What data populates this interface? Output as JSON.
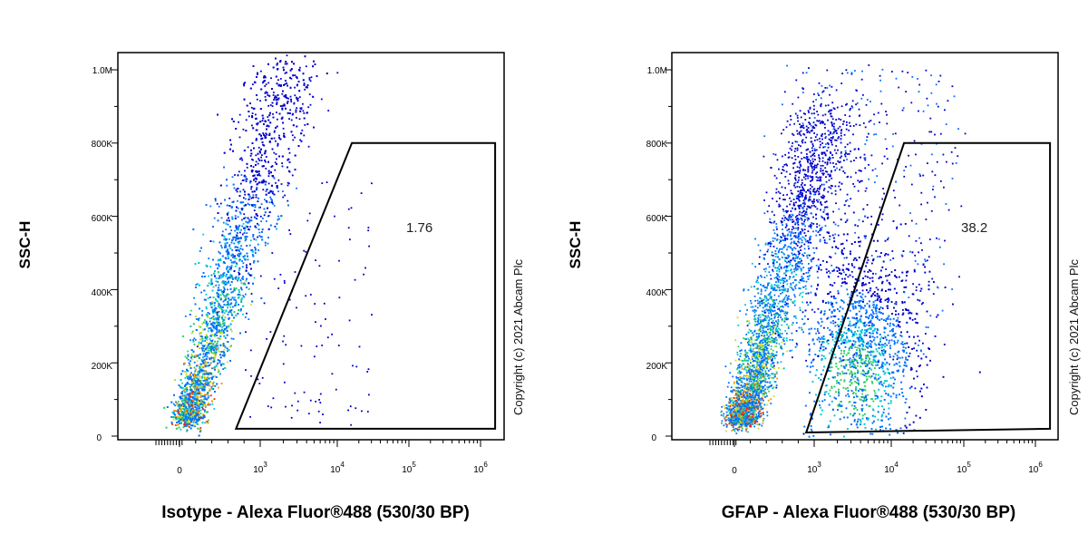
{
  "copyright": "Copyright (c) 2021 Abcam Plc",
  "colors": {
    "density": [
      "#0000cc",
      "#0070ff",
      "#00c8d0",
      "#30d060",
      "#c8e020",
      "#ff9000",
      "#ff2000"
    ]
  },
  "chart_data": [
    {
      "type": "scatter",
      "subtype": "flow-cytometry-density-dot-plot",
      "xlabel": "Isotype - Alexa Fluor®488 (530/30 BP)",
      "ylabel": "SSC-H",
      "x_scale": "biexponential",
      "x_ticks": [
        "0",
        "10^3",
        "10^4",
        "10^5",
        "10^6"
      ],
      "y_ticks": [
        "0",
        "200K",
        "400K",
        "600K",
        "800K",
        "1.0M"
      ],
      "ylim": [
        0,
        1050000
      ],
      "gate": {
        "label": "1.76",
        "percent_positive": 1.76,
        "vertices": [
          [
            700,
            20000
          ],
          [
            16000,
            800000
          ],
          [
            1600000,
            800000
          ],
          [
            1600000,
            20000
          ]
        ]
      },
      "populations": [
        {
          "name": "",
          "x_center": 60,
          "y_center": 80000,
          "share": 0.98
        }
      ]
    },
    {
      "type": "scatter",
      "subtype": "flow-cytometry-density-dot-plot",
      "xlabel": "GFAP - Alexa Fluor®488 (530/30 BP)",
      "ylabel": "SSC-H",
      "x_scale": "biexponential",
      "x_ticks": [
        "0",
        "10^3",
        "10^4",
        "10^5",
        "10^6"
      ],
      "y_ticks": [
        "0",
        "200K",
        "400K",
        "600K",
        "800K",
        "1.0M"
      ],
      "ylim": [
        0,
        1050000
      ],
      "gate": {
        "label": "38.2",
        "percent_positive": 38.2,
        "vertices": [
          [
            900,
            10000
          ],
          [
            15000,
            800000
          ],
          [
            1600000,
            800000
          ],
          [
            1600000,
            20000
          ]
        ]
      },
      "populations": [
        {
          "name": "",
          "x_center": 60,
          "y_center": 70000,
          "share": 0.62
        },
        {
          "name": "",
          "x_center": 5000,
          "y_center": 150000,
          "share": 0.38
        }
      ]
    }
  ]
}
